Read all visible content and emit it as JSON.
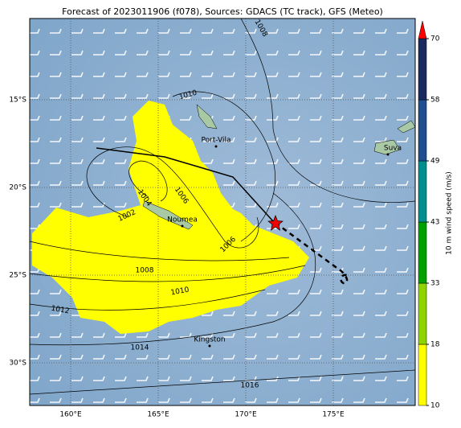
{
  "title": "Forecast of 2023011906 (f078), Sources: GDACS (TC track), GFS (Meteo)",
  "map": {
    "lon_labels": [
      "160°E",
      "165°E",
      "170°E",
      "175°E"
    ],
    "lat_labels": [
      "15°S",
      "20°S",
      "25°S",
      "30°S"
    ],
    "places": [
      "Port-Vila",
      "Suva",
      "Noumea",
      "Kingston"
    ],
    "isobar_labels": [
      1008,
      1010,
      1004,
      1006,
      1002,
      1006,
      1008,
      1010,
      1012,
      1014,
      1016
    ]
  },
  "colorbar": {
    "label": "10 m wind speed (m/s)",
    "ticks": [
      10,
      18,
      33,
      43,
      49,
      58,
      70
    ],
    "colors": [
      "#ffff00",
      "#8fd400",
      "#00a000",
      "#008f8f",
      "#1f4f8f",
      "#1a2a60"
    ],
    "extend_color": "#ff0000"
  }
}
